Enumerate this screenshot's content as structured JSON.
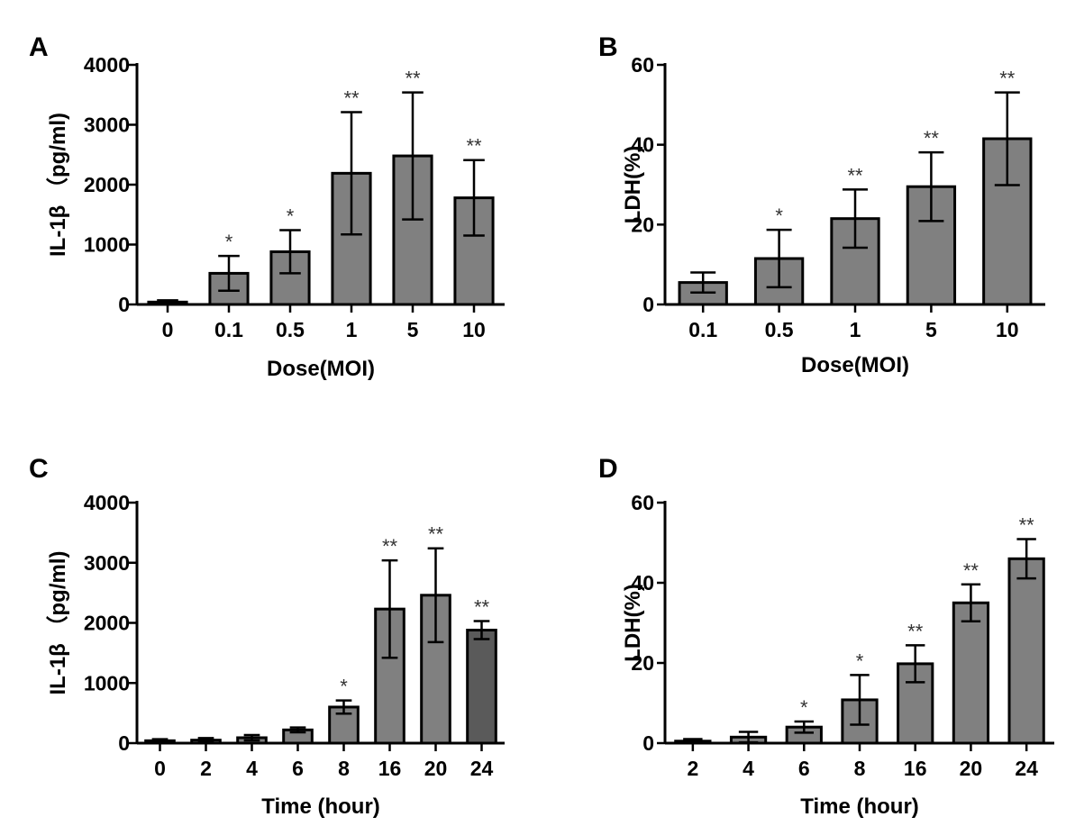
{
  "chart_data": [
    {
      "id": "A",
      "panel_label": "A",
      "type": "bar",
      "xlabel": "Dose(MOI)",
      "ylabel": "IL-1β （pg/ml)",
      "ylim": [
        0,
        4000
      ],
      "yticks": [
        0,
        1000,
        2000,
        3000,
        4000
      ],
      "categories": [
        "0",
        "0.1",
        "0.5",
        "1",
        "5",
        "10"
      ],
      "values": [
        40,
        520,
        880,
        2190,
        2480,
        1780
      ],
      "errors": [
        30,
        290,
        360,
        1020,
        1060,
        630
      ],
      "significance": [
        "",
        "*",
        "*",
        "**",
        "**",
        "**"
      ],
      "bar_colors": [
        "#808080",
        "#808080",
        "#808080",
        "#808080",
        "#808080",
        "#808080"
      ]
    },
    {
      "id": "B",
      "panel_label": "B",
      "type": "bar",
      "xlabel": "Dose(MOI)",
      "ylabel": "LDH(%)",
      "ylim": [
        0,
        60
      ],
      "yticks": [
        0,
        20,
        40,
        60
      ],
      "categories": [
        "0.1",
        "0.5",
        "1",
        "5",
        "10"
      ],
      "values": [
        5.5,
        11.5,
        21.5,
        29.5,
        41.5
      ],
      "errors": [
        2.5,
        7.2,
        7.3,
        8.6,
        11.6
      ],
      "significance": [
        "",
        "*",
        "**",
        "**",
        "**"
      ],
      "bar_colors": [
        "#808080",
        "#808080",
        "#808080",
        "#808080",
        "#808080"
      ]
    },
    {
      "id": "C",
      "panel_label": "C",
      "type": "bar",
      "xlabel": "Time (hour)",
      "ylabel": "IL-1β （pg/ml)",
      "ylim": [
        0,
        4000
      ],
      "yticks": [
        0,
        1000,
        2000,
        3000,
        4000
      ],
      "categories": [
        "0",
        "2",
        "4",
        "6",
        "8",
        "16",
        "20",
        "24"
      ],
      "values": [
        40,
        50,
        90,
        220,
        600,
        2230,
        2460,
        1880
      ],
      "errors": [
        25,
        35,
        45,
        40,
        110,
        810,
        780,
        150
      ],
      "significance": [
        "",
        "",
        "",
        "",
        "*",
        "**",
        "**",
        "**"
      ],
      "bar_colors": [
        "#808080",
        "#808080",
        "#808080",
        "#808080",
        "#808080",
        "#808080",
        "#808080",
        "#5a5a5a"
      ]
    },
    {
      "id": "D",
      "panel_label": "D",
      "type": "bar",
      "xlabel": "Time (hour)",
      "ylabel": "LDH(%)",
      "ylim": [
        0,
        60
      ],
      "yticks": [
        0,
        20,
        40,
        60
      ],
      "categories": [
        "2",
        "4",
        "6",
        "8",
        "16",
        "20",
        "24"
      ],
      "values": [
        0.5,
        1.5,
        4.0,
        10.8,
        19.8,
        35.0,
        46.0
      ],
      "errors": [
        0.5,
        1.3,
        1.4,
        6.2,
        4.6,
        4.6,
        4.9
      ],
      "significance": [
        "",
        "",
        "*",
        "*",
        "**",
        "**",
        "**"
      ],
      "bar_colors": [
        "#808080",
        "#808080",
        "#808080",
        "#808080",
        "#808080",
        "#808080",
        "#808080"
      ]
    }
  ]
}
